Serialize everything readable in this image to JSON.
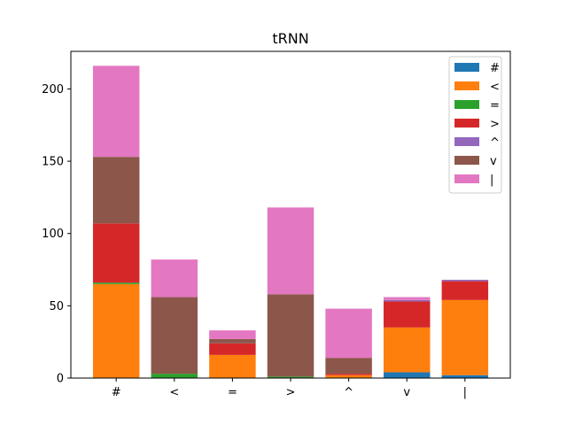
{
  "chart_data": {
    "type": "bar",
    "stacked": true,
    "title": "tRNN",
    "xlabel": "",
    "ylabel": "",
    "ylim": [
      0,
      226
    ],
    "yticks": [
      0,
      50,
      100,
      150,
      200
    ],
    "categories": [
      "#",
      "<",
      "=",
      ">",
      "^",
      "v",
      "|"
    ],
    "series": [
      {
        "name": "#",
        "color": "#1f77b4",
        "values": [
          0,
          0,
          0,
          0,
          0,
          4,
          2
        ]
      },
      {
        "name": "<",
        "color": "#ff7f0e",
        "values": [
          65,
          0,
          16,
          0,
          2,
          31,
          52
        ]
      },
      {
        "name": "=",
        "color": "#2ca02c",
        "values": [
          1,
          3,
          0,
          1,
          0,
          0,
          0
        ]
      },
      {
        "name": ">",
        "color": "#d62728",
        "values": [
          41,
          0,
          8,
          0,
          1,
          18,
          13
        ]
      },
      {
        "name": "^",
        "color": "#9467bd",
        "values": [
          0,
          0,
          0,
          0,
          0,
          1,
          1
        ]
      },
      {
        "name": "v",
        "color": "#8c564b",
        "values": [
          46,
          53,
          3,
          57,
          11,
          0,
          0
        ]
      },
      {
        "name": "|",
        "color": "#e377c2",
        "values": [
          63,
          26,
          6,
          60,
          34,
          2,
          0
        ]
      }
    ],
    "grid": false,
    "legend_position": "top-right"
  }
}
